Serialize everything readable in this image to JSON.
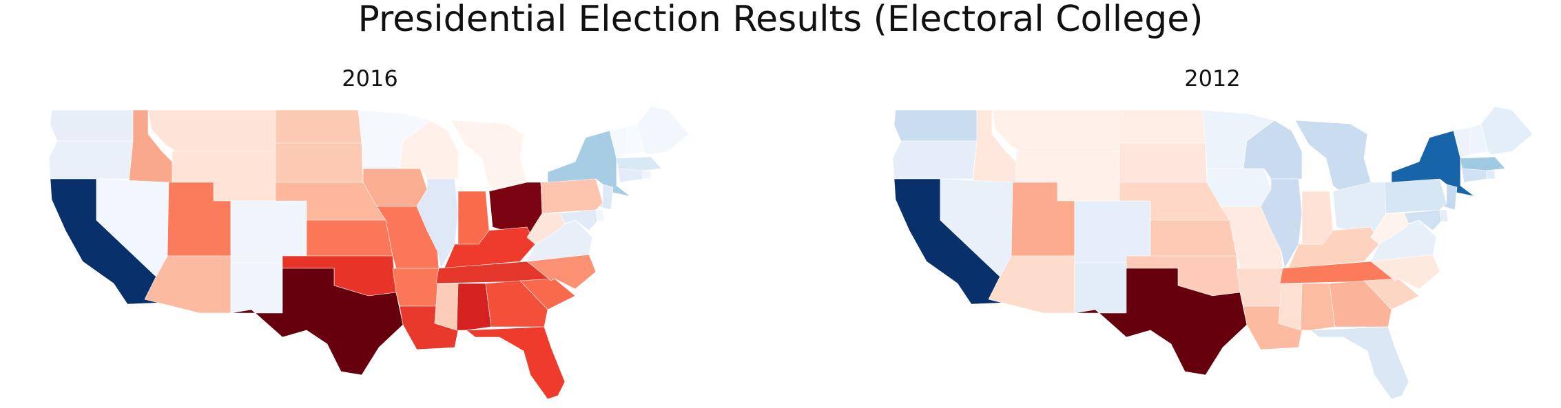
{
  "title": "Presidential Election Results (Electoral College)",
  "maps": [
    {
      "title": "2016",
      "colors": {
        "WA": "#e8eef8",
        "OR": "#e9f0f9",
        "CA": "#08306b",
        "NV": "#f2f7fd",
        "ID": "#f9a88c",
        "MT": "#fee4d8",
        "WY": "#fee3d6",
        "UT": "#fb7c5c",
        "CO": "#f0f5fc",
        "AZ": "#fcbaa0",
        "NM": "#f0f5fc",
        "ND": "#fcc9b3",
        "SD": "#fcc9b3",
        "NE": "#fcb79c",
        "KS": "#fb7757",
        "OK": "#e83428",
        "TX": "#67000d",
        "MN": "#f5f9fe",
        "IA": "#fcae92",
        "MO": "#fb7757",
        "AR": "#fb7757",
        "LA": "#e9392c",
        "WI": "#fff0e9",
        "IL": "#dfe8f6",
        "MI": "#fff3ed",
        "IN": "#fa6b4c",
        "OH": "#7a0510",
        "KY": "#ef3b2c",
        "TN": "#e4362a",
        "MS": "#fdccb8",
        "AL": "#d52221",
        "GA": "#f44f39",
        "FL": "#ef3b2c",
        "SC": "#f9694c",
        "NC": "#fc9273",
        "VA": "#e8eff9",
        "WV": "#fee5d9",
        "PA": "#fdc5ae",
        "NY": "#a6cde4",
        "VT": "#f5f9fe",
        "NH": "#f7fbff",
        "ME": "#f2f7fd",
        "MA": "#d9e8f5",
        "CT": "#e3ecf8",
        "NJ": "#dce9f6",
        "MD": "#e0ebf7",
        "DE": "#f1f6fd",
        "RI": "#eff5fc"
      }
    },
    {
      "title": "2012",
      "colors": {
        "WA": "#cadcf0",
        "OR": "#e5eef8",
        "CA": "#08306b",
        "NV": "#e8f0f9",
        "ID": "#fee8de",
        "MT": "#fff1ea",
        "WY": "#fff1ea",
        "UT": "#fcab8f",
        "CO": "#e6eff9",
        "AZ": "#fedccc",
        "NM": "#e3edf8",
        "ND": "#feeee5",
        "SD": "#fee6dc",
        "NE": "#fed7c6",
        "KS": "#fccab5",
        "OK": "#fdcbb7",
        "TX": "#67000d",
        "MN": "#edf3fb",
        "IA": "#eef4fc",
        "MO": "#feeae0",
        "AR": "#fedccc",
        "LA": "#fcbba1",
        "WI": "#c8dbef",
        "IL": "#cbdcf0",
        "MI": "#c9dcf0",
        "IN": "#fee2d5",
        "OH": "#e3edf8",
        "KY": "#fdd3c0",
        "TN": "#fb7b5a",
        "MS": "#fee0d2",
        "AL": "#fcbca2",
        "GA": "#fbb49a",
        "FL": "#dae8f6",
        "SC": "#fdd5c3",
        "NC": "#fee9df",
        "VA": "#e7eff9",
        "WV": "#fff3ee",
        "PA": "#d6e6f4",
        "NY": "#1764ab",
        "VT": "#edf3fb",
        "NH": "#edf4fb",
        "ME": "#e4eef8",
        "MA": "#a0cae1",
        "CT": "#cfe1f2",
        "NJ": "#c4d9ee",
        "MD": "#cfe1f2",
        "DE": "#e4eef8",
        "RI": "#e0ebf7"
      }
    }
  ]
}
